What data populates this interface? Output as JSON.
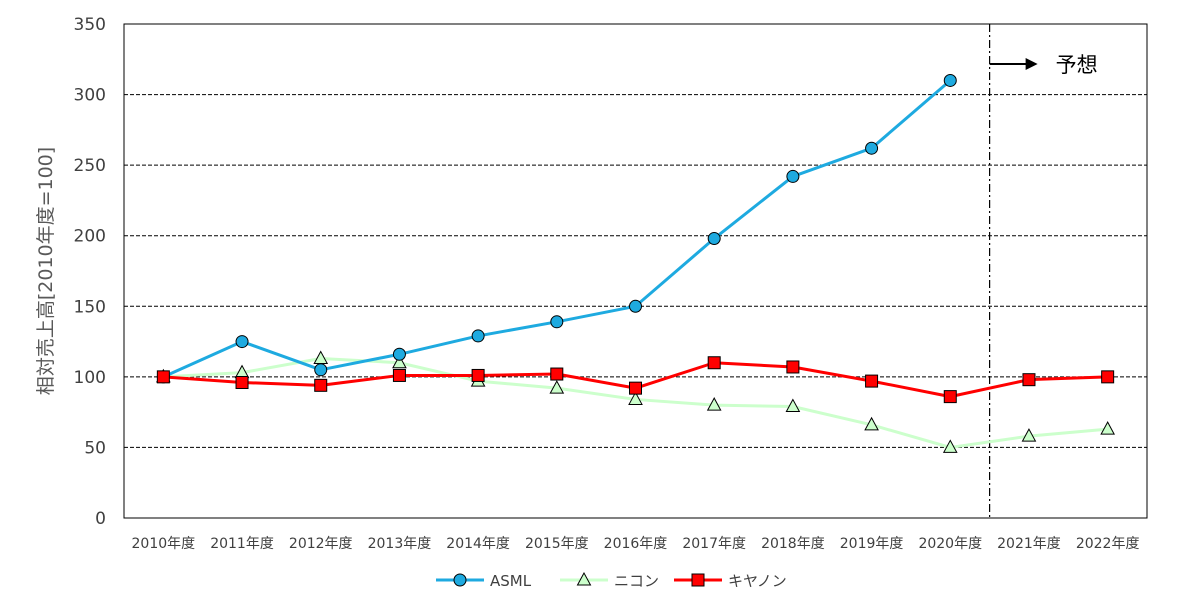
{
  "chart_data": {
    "type": "line",
    "title": "",
    "xlabel": "",
    "ylabel": "相対売上高[2010年度=100]",
    "ylim": [
      0,
      350
    ],
    "yticks": [
      0,
      50,
      100,
      150,
      200,
      250,
      300,
      350
    ],
    "grid": "horizontal dashed",
    "legend_position": "bottom",
    "categories": [
      "2010年度",
      "2011年度",
      "2012年度",
      "2013年度",
      "2014年度",
      "2015年度",
      "2016年度",
      "2017年度",
      "2018年度",
      "2019年度",
      "2020年度",
      "2021年度",
      "2022年度"
    ],
    "series": [
      {
        "name": "ASML",
        "color": "#1eaae0",
        "marker": "circle",
        "marker_fill": "#1eaae0",
        "values": [
          100,
          125,
          105,
          116,
          129,
          139,
          150,
          198,
          242,
          262,
          310,
          null,
          null
        ]
      },
      {
        "name": "ニコン",
        "color": "#ccffcc",
        "marker": "triangle",
        "marker_fill": "#ccffcc",
        "values": [
          100,
          103,
          113,
          110,
          97,
          92,
          84,
          80,
          79,
          66,
          50,
          58,
          63
        ]
      },
      {
        "name": "キヤノン",
        "color": "#ff0000",
        "marker": "square",
        "marker_fill": "#ff0000",
        "values": [
          100,
          96,
          94,
          101,
          101,
          102,
          92,
          110,
          107,
          97,
          86,
          98,
          100
        ]
      }
    ],
    "annotations": [
      {
        "text": "予想",
        "type": "forecast-arrow",
        "after_category": "2020年度"
      }
    ]
  }
}
